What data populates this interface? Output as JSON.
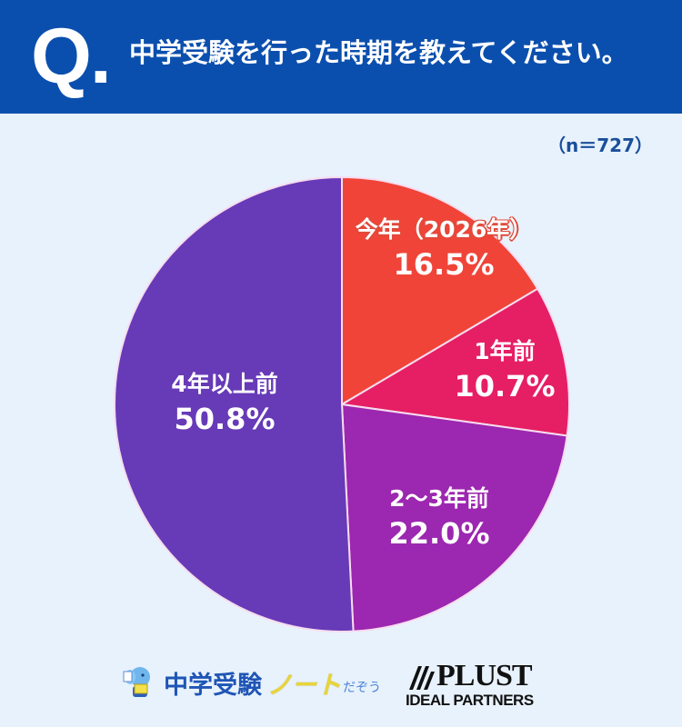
{
  "header": {
    "q_mark": "Q.",
    "question": "中学受験を行った時期を教えてください。"
  },
  "sample_size": "（n＝727）",
  "chart_data": {
    "type": "pie",
    "title": "中学受験を行った時期を教えてください。",
    "n": 727,
    "start_angle": "12 o'clock, clockwise",
    "categories": [
      "今年（2026年）",
      "1年前",
      "2〜3年前",
      "4年以上前"
    ],
    "values": [
      16.5,
      10.7,
      22.0,
      50.8
    ],
    "unit": "%",
    "colors": [
      "#f04438",
      "#e61e64",
      "#9c27b0",
      "#673ab7"
    ],
    "slices": [
      {
        "label": "今年（2026年）",
        "value": 16.5,
        "display": "16.5%",
        "color": "#f04438"
      },
      {
        "label": "1年前",
        "value": 10.7,
        "display": "10.7%",
        "color": "#e61e64"
      },
      {
        "label": "2〜3年前",
        "value": 22.0,
        "display": "22.0%",
        "color": "#9c27b0"
      },
      {
        "label": "4年以上前",
        "value": 50.8,
        "display": "50.8%",
        "color": "#673ab7"
      }
    ],
    "legend": "none (labels inside slices)"
  },
  "footer": {
    "logo_left": {
      "brand": "中学受験",
      "note": "ノート",
      "suffix": "だぞう"
    },
    "logo_right": {
      "name": "PLUST",
      "tagline": "IDEAL PARTNERS"
    }
  },
  "colors": {
    "header_bg": "#0b4fae",
    "page_bg": "#e8f2fd",
    "n_text": "#1a4f9c"
  }
}
